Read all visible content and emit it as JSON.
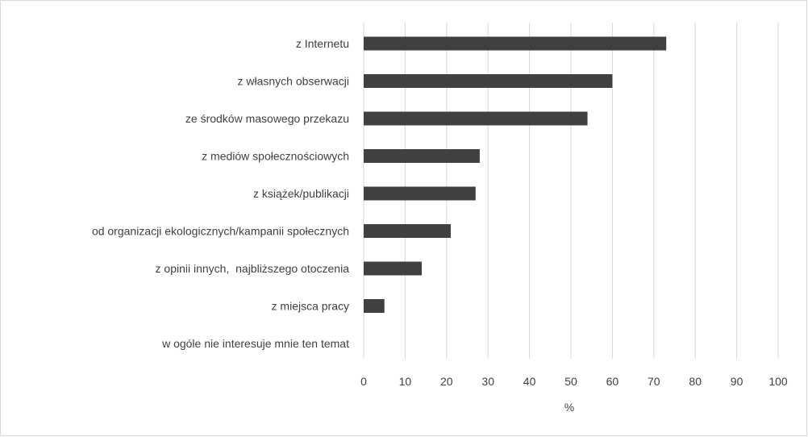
{
  "chart_data": {
    "type": "bar",
    "orientation": "horizontal",
    "title": "",
    "xlabel": "%",
    "ylabel": "",
    "xlim": [
      0,
      100
    ],
    "xticks": [
      0,
      10,
      20,
      30,
      40,
      50,
      60,
      70,
      80,
      90,
      100
    ],
    "grid": "vertical",
    "bar_color": "#404040",
    "categories": [
      "z Internetu",
      "z własnych obserwacji",
      "ze środków masowego przekazu",
      "z mediów społecznościowych",
      "z książek/publikacji",
      "od organizacji ekologicznych/kampanii społecznych",
      "z opinii innych,  najbliższego otoczenia",
      "z miejsca pracy",
      "w ogóle nie interesuje mnie ten temat"
    ],
    "values": [
      73,
      60,
      54,
      28,
      27,
      21,
      14,
      5,
      0
    ]
  }
}
